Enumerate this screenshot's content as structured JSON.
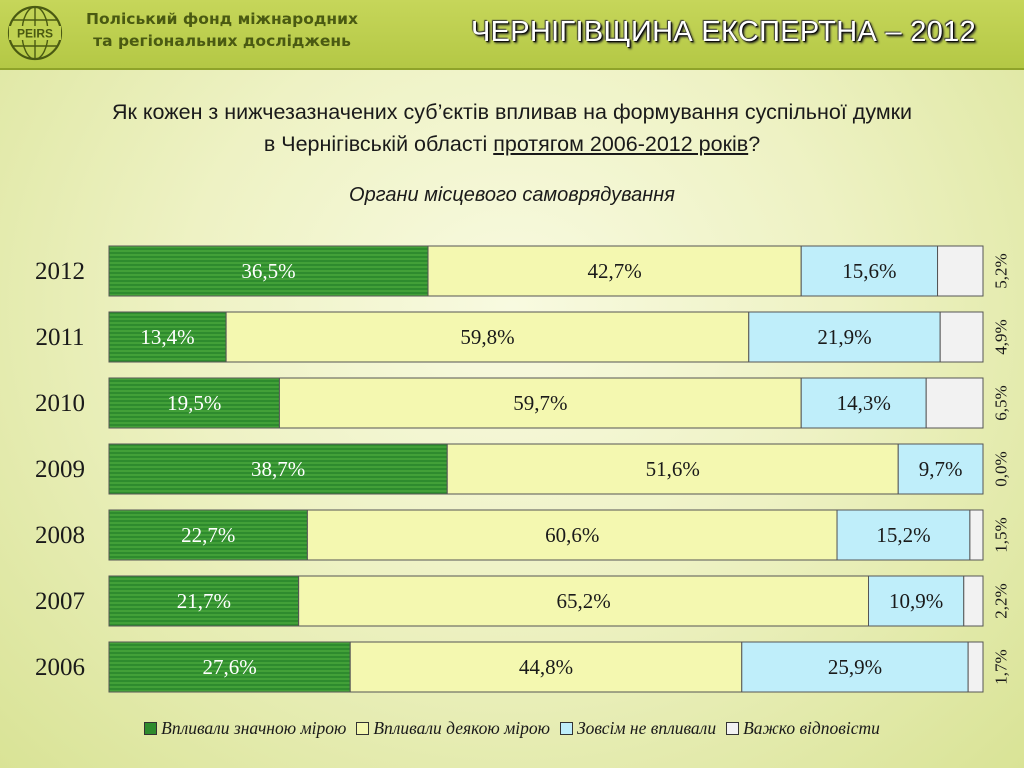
{
  "header": {
    "logo_text": "PEIRS",
    "org_line1": "Поліський фонд міжнародних",
    "org_line2": "та регіональних досліджень",
    "title": "ЧЕРНІГІВЩИНА ЕКСПЕРТНА – 2012"
  },
  "question": {
    "line1": "Як кожен з нижчезазначених суб’єктів впливав на формування суспільної думки",
    "line2_prefix": "в Чернігівській області ",
    "line2_underlined": "протягом 2006-2012 років",
    "line2_suffix": "?"
  },
  "subtitle": "Органи місцевого самоврядування",
  "colors": {
    "significant": "#2e8b2e",
    "some": "#f4f8b0",
    "none": "#bfeefa",
    "hard": "#f2f2f2"
  },
  "chart_data": {
    "type": "bar",
    "orientation": "horizontal",
    "stacked": true,
    "normalized_percent": true,
    "categories": [
      "2012",
      "2011",
      "2010",
      "2009",
      "2008",
      "2007",
      "2006"
    ],
    "series": [
      {
        "name": "Впливали значною мірою",
        "values": [
          36.5,
          13.4,
          19.5,
          38.7,
          22.7,
          21.7,
          27.6
        ],
        "labels": [
          "36,5%",
          "13,4%",
          "19,5%",
          "38,7%",
          "22,7%",
          "21,7%",
          "27,6%"
        ]
      },
      {
        "name": "Впливали деякою мірою",
        "values": [
          42.7,
          59.8,
          59.7,
          51.6,
          60.6,
          65.2,
          44.8
        ],
        "labels": [
          "42,7%",
          "59,8%",
          "59,7%",
          "51,6%",
          "60,6%",
          "65,2%",
          "44,8%"
        ]
      },
      {
        "name": "Зовсім не впливали",
        "values": [
          15.6,
          21.9,
          14.3,
          9.7,
          15.2,
          10.9,
          25.9
        ],
        "labels": [
          "15,6%",
          "21,9%",
          "14,3%",
          "9,7%",
          "15,2%",
          "10,9%",
          "25,9%"
        ]
      },
      {
        "name": "Важко відповісти",
        "values": [
          5.2,
          4.9,
          6.5,
          0.0,
          1.5,
          2.2,
          1.7
        ],
        "labels": [
          "5,2%",
          "4,9%",
          "6,5%",
          "0,0%",
          "1,5%",
          "2,2%",
          "1,7%"
        ]
      }
    ],
    "legend_position": "bottom",
    "grid": false
  }
}
